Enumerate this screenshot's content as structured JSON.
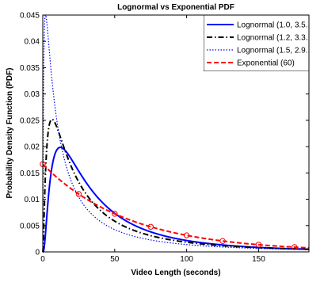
{
  "chart_data": {
    "type": "line",
    "title": "Lognormal vs Exponential PDF",
    "xlabel": "Video Length (seconds)",
    "ylabel": "Probability Density Function (PDF)",
    "xlim": [
      0,
      185
    ],
    "ylim": [
      0,
      0.045
    ],
    "xticks": [
      0,
      50,
      100,
      150
    ],
    "yticks": [
      0,
      0.005,
      0.01,
      0.015,
      0.02,
      0.025,
      0.03,
      0.035,
      0.04,
      0.045
    ],
    "xtick_labels": [
      "0",
      "50",
      "100",
      "150"
    ],
    "ytick_labels": [
      "0",
      "0.005",
      "0.01",
      "0.015",
      "0.02",
      "0.025",
      "0.03",
      "0.035",
      "0.04",
      "0.045"
    ],
    "grid": false,
    "legend_position": "top-right",
    "series": [
      {
        "name": "Lognormal (1.0, 3.5...",
        "dist": "lognormal",
        "sigma": 1.0,
        "mu": 3.5,
        "color": "#0000ff",
        "style": "solid"
      },
      {
        "name": "Lognormal (1.2, 3.3...",
        "dist": "lognormal",
        "sigma": 1.2,
        "mu": 3.3,
        "color": "#000000",
        "style": "dashdot"
      },
      {
        "name": "Lognormal (1.5, 2.9...",
        "dist": "lognormal",
        "sigma": 1.5,
        "mu": 2.9,
        "color": "#0000ff",
        "style": "dotted"
      },
      {
        "name": "Exponential (60)",
        "dist": "exponential",
        "mean": 60,
        "color": "#ff0000",
        "style": "dashed",
        "marker": "circle",
        "marker_x": [
          0,
          25,
          50,
          75,
          100,
          125,
          150,
          175
        ]
      }
    ]
  }
}
